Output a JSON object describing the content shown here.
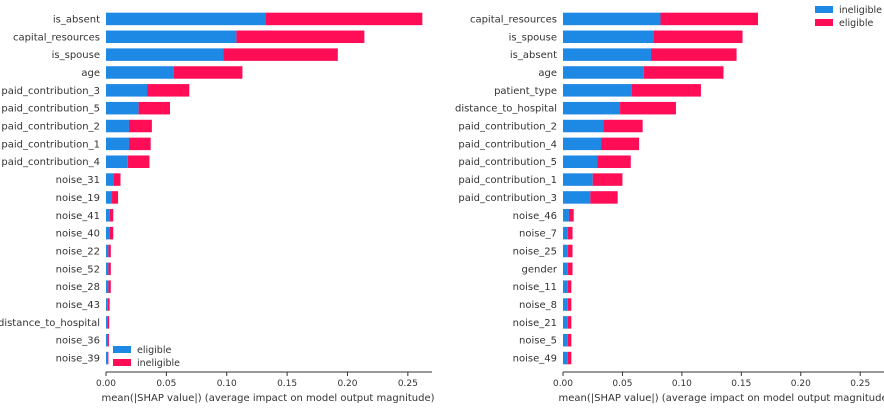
{
  "colors": {
    "blue": "#1E88E5",
    "red": "#FF0D57",
    "axis": "#333333"
  },
  "chart_data": [
    {
      "type": "bar",
      "orientation": "horizontal",
      "stacked": true,
      "features": [
        "is_absent",
        "capital_resources",
        "is_spouse",
        "age",
        "paid_contribution_3",
        "paid_contribution_5",
        "paid_contribution_2",
        "paid_contribution_1",
        "paid_contribution_4",
        "noise_31",
        "noise_19",
        "noise_41",
        "noise_40",
        "noise_22",
        "noise_52",
        "noise_28",
        "noise_43",
        "distance_to_hospital",
        "noise_36",
        "noise_39"
      ],
      "series": [
        {
          "name": "eligible",
          "color": "#1E88E5",
          "values": [
            0.132,
            0.108,
            0.097,
            0.056,
            0.034,
            0.027,
            0.019,
            0.019,
            0.018,
            0.006,
            0.005,
            0.003,
            0.003,
            0.002,
            0.002,
            0.002,
            0.0015,
            0.0013,
            0.0012,
            0.001
          ]
        },
        {
          "name": "ineligible",
          "color": "#FF0D57",
          "values": [
            0.13,
            0.106,
            0.095,
            0.057,
            0.035,
            0.026,
            0.019,
            0.018,
            0.018,
            0.006,
            0.005,
            0.003,
            0.003,
            0.002,
            0.002,
            0.002,
            0.0015,
            0.0013,
            0.0012,
            0.001
          ]
        }
      ],
      "xlim": [
        0,
        0.27
      ],
      "xticks": [
        "0.00",
        "0.05",
        "0.10",
        "0.15",
        "0.20",
        "0.25"
      ],
      "xlabel": "mean(|SHAP value|) (average impact on model output magnitude)",
      "legend": {
        "position": "bottom-left",
        "entries": [
          "eligible",
          "ineligible"
        ]
      }
    },
    {
      "type": "bar",
      "orientation": "horizontal",
      "stacked": true,
      "features": [
        "capital_resources",
        "is_spouse",
        "is_absent",
        "age",
        "patient_type",
        "distance_to_hospital",
        "paid_contribution_2",
        "paid_contribution_4",
        "paid_contribution_5",
        "paid_contribution_1",
        "paid_contribution_3",
        "noise_46",
        "noise_7",
        "noise_25",
        "gender",
        "noise_11",
        "noise_8",
        "noise_21",
        "noise_5",
        "noise_49"
      ],
      "series": [
        {
          "name": "ineligible",
          "color": "#1E88E5",
          "values": [
            0.082,
            0.076,
            0.074,
            0.068,
            0.058,
            0.048,
            0.034,
            0.032,
            0.029,
            0.025,
            0.023,
            0.005,
            0.004,
            0.004,
            0.004,
            0.004,
            0.004,
            0.004,
            0.004,
            0.004
          ]
        },
        {
          "name": "eligible",
          "color": "#FF0D57",
          "values": [
            0.082,
            0.075,
            0.072,
            0.067,
            0.058,
            0.047,
            0.033,
            0.032,
            0.028,
            0.025,
            0.023,
            0.004,
            0.004,
            0.004,
            0.004,
            0.003,
            0.003,
            0.003,
            0.003,
            0.003
          ]
        }
      ],
      "xlim": [
        0,
        0.27
      ],
      "xticks": [
        "0.00",
        "0.05",
        "0.10",
        "0.15",
        "0.20",
        "0.25"
      ],
      "xlabel": "mean(|SHAP value|) (average impact on model output magnitude)",
      "legend": {
        "position": "top-right",
        "entries": [
          "ineligible",
          "eligible"
        ]
      }
    }
  ]
}
